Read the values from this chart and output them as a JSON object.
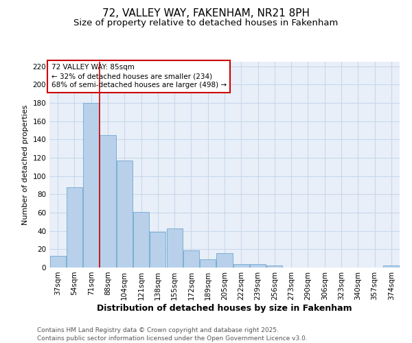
{
  "title": "72, VALLEY WAY, FAKENHAM, NR21 8PH",
  "subtitle": "Size of property relative to detached houses in Fakenham",
  "xlabel": "Distribution of detached houses by size in Fakenham",
  "ylabel": "Number of detached properties",
  "categories": [
    "37sqm",
    "54sqm",
    "71sqm",
    "88sqm",
    "104sqm",
    "121sqm",
    "138sqm",
    "155sqm",
    "172sqm",
    "189sqm",
    "205sqm",
    "222sqm",
    "239sqm",
    "256sqm",
    "273sqm",
    "290sqm",
    "306sqm",
    "323sqm",
    "340sqm",
    "357sqm",
    "374sqm"
  ],
  "values": [
    13,
    88,
    180,
    145,
    117,
    61,
    39,
    43,
    19,
    9,
    16,
    4,
    4,
    2,
    0,
    0,
    0,
    0,
    0,
    0,
    2
  ],
  "bar_color": "#b8d0ea",
  "bar_edgecolor": "#6fa8d0",
  "vline_color": "#cc0000",
  "vline_xindex": 2.5,
  "annotation_text": "72 VALLEY WAY: 85sqm\n← 32% of detached houses are smaller (234)\n68% of semi-detached houses are larger (498) →",
  "annotation_box_color": "#ffffff",
  "annotation_box_edgecolor": "#cc0000",
  "ylim": [
    0,
    225
  ],
  "yticks": [
    0,
    20,
    40,
    60,
    80,
    100,
    120,
    140,
    160,
    180,
    200,
    220
  ],
  "grid_color": "#c8d8ec",
  "background_color": "#e8eff8",
  "footer": "Contains HM Land Registry data © Crown copyright and database right 2025.\nContains public sector information licensed under the Open Government Licence v3.0.",
  "title_fontsize": 11,
  "subtitle_fontsize": 9.5,
  "xlabel_fontsize": 9,
  "ylabel_fontsize": 8,
  "tick_fontsize": 7.5,
  "annotation_fontsize": 7.5,
  "footer_fontsize": 6.5
}
